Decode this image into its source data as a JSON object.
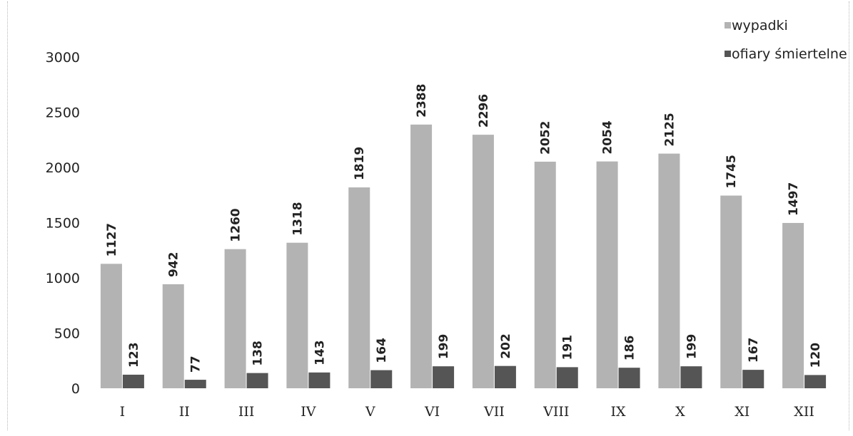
{
  "chart_data": {
    "type": "bar",
    "categories": [
      "I",
      "II",
      "III",
      "IV",
      "V",
      "VI",
      "VII",
      "VIII",
      "IX",
      "X",
      "XI",
      "XII"
    ],
    "series": [
      {
        "name": "wypadki",
        "color": "#b3b3b3",
        "values": [
          1127,
          942,
          1260,
          1318,
          1819,
          2388,
          2296,
          2052,
          2054,
          2125,
          1745,
          1497
        ]
      },
      {
        "name": "ofiary śmiertelne",
        "color": "#555555",
        "values": [
          123,
          77,
          138,
          143,
          164,
          199,
          202,
          191,
          186,
          199,
          167,
          120
        ]
      }
    ],
    "ylim": [
      0,
      3000
    ],
    "yticks": [
      0,
      500,
      1000,
      1500,
      2000,
      2500,
      3000
    ],
    "grid": false,
    "legend_position": "top-right",
    "title": "",
    "xlabel": "",
    "ylabel": ""
  }
}
